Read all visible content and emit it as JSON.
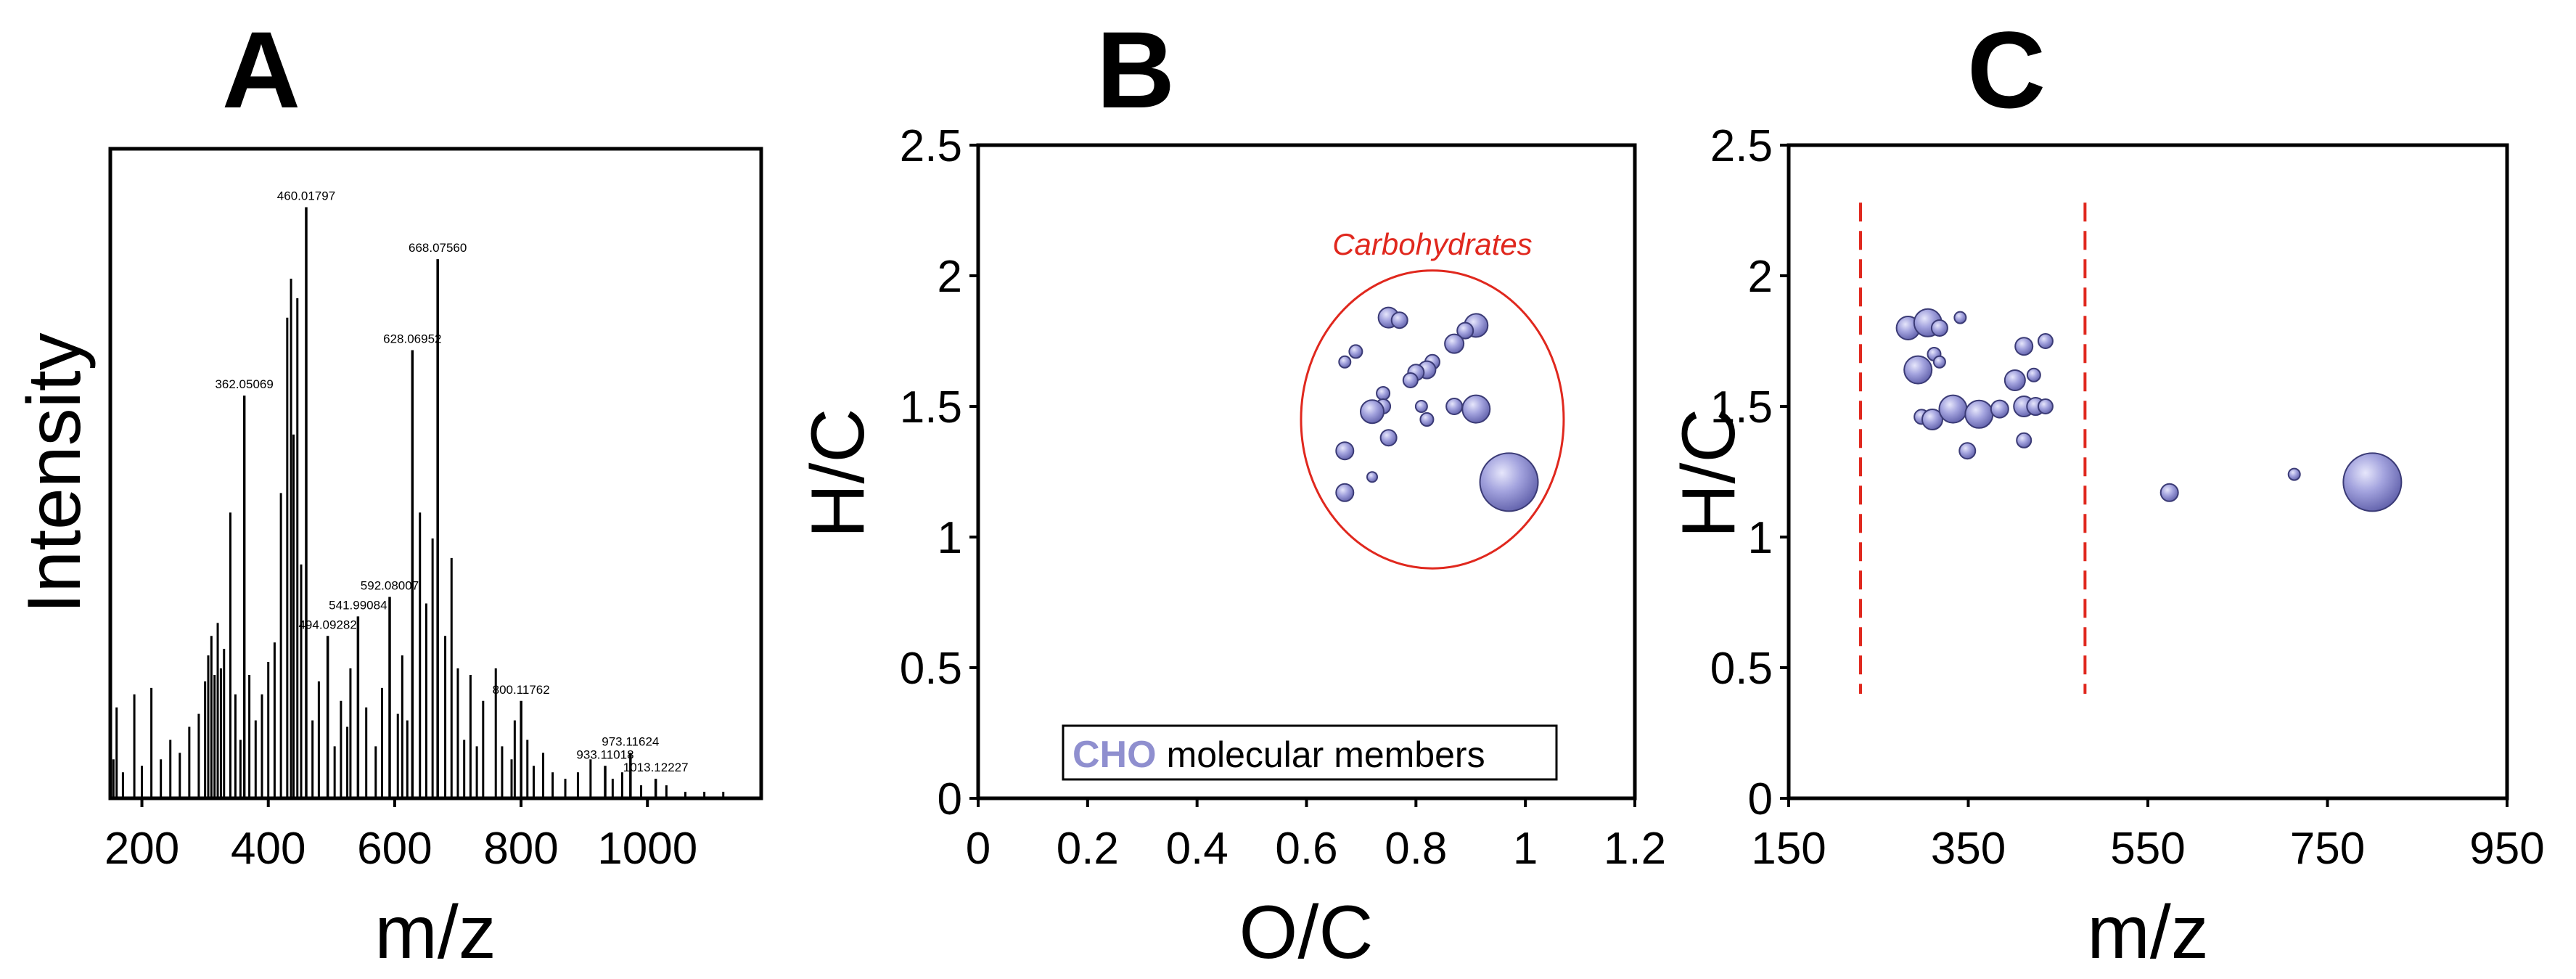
{
  "colors": {
    "bubble_fill": "#9a9ad8",
    "bubble_stroke": "#3b3b76",
    "accent_red": "#e0281e",
    "legend_key": "#8f8fcf"
  },
  "chart_data": [
    {
      "panel": "A",
      "type": "bar",
      "subtype": "mass-spectrum",
      "xlabel": "m/z",
      "ylabel": "Intensity",
      "xlim": [
        150,
        1180
      ],
      "ylim": [
        0,
        100
      ],
      "xticks": [
        "200",
        "400",
        "600",
        "800",
        "1000"
      ],
      "xtick_values": [
        200,
        400,
        600,
        800,
        1000
      ],
      "labeled_peaks": [
        {
          "mz": 460.01797,
          "label": "460.01797",
          "intensity": 91
        },
        {
          "mz": 668.0756,
          "label": "668.07560",
          "intensity": 83
        },
        {
          "mz": 628.06952,
          "label": "628.06952",
          "intensity": 69
        },
        {
          "mz": 362.05069,
          "label": "362.05069",
          "intensity": 62
        },
        {
          "mz": 592.08007,
          "label": "592.08007",
          "intensity": 31
        },
        {
          "mz": 541.99084,
          "label": "541.99084",
          "intensity": 28
        },
        {
          "mz": 494.09282,
          "label": "494.09282",
          "intensity": 25
        },
        {
          "mz": 800.11762,
          "label": "800.11762",
          "intensity": 15
        },
        {
          "mz": 973.11624,
          "label": "973.11624",
          "intensity": 7
        },
        {
          "mz": 933.11018,
          "label": "933.11018",
          "intensity": 5
        },
        {
          "mz": 1013.12227,
          "label": "1013.12227",
          "intensity": 3
        }
      ],
      "other_peaks": [
        {
          "mz": 155,
          "intensity": 6
        },
        {
          "mz": 160,
          "intensity": 14
        },
        {
          "mz": 170,
          "intensity": 4
        },
        {
          "mz": 188,
          "intensity": 16
        },
        {
          "mz": 200,
          "intensity": 5
        },
        {
          "mz": 215,
          "intensity": 17
        },
        {
          "mz": 230,
          "intensity": 6
        },
        {
          "mz": 245,
          "intensity": 9
        },
        {
          "mz": 260,
          "intensity": 7
        },
        {
          "mz": 275,
          "intensity": 11
        },
        {
          "mz": 290,
          "intensity": 13
        },
        {
          "mz": 300,
          "intensity": 18
        },
        {
          "mz": 305,
          "intensity": 22
        },
        {
          "mz": 310,
          "intensity": 25
        },
        {
          "mz": 315,
          "intensity": 19
        },
        {
          "mz": 320,
          "intensity": 27
        },
        {
          "mz": 325,
          "intensity": 20
        },
        {
          "mz": 330,
          "intensity": 23
        },
        {
          "mz": 340,
          "intensity": 44
        },
        {
          "mz": 348,
          "intensity": 16
        },
        {
          "mz": 356,
          "intensity": 9
        },
        {
          "mz": 370,
          "intensity": 19
        },
        {
          "mz": 380,
          "intensity": 12
        },
        {
          "mz": 390,
          "intensity": 16
        },
        {
          "mz": 400,
          "intensity": 21
        },
        {
          "mz": 410,
          "intensity": 24
        },
        {
          "mz": 420,
          "intensity": 47
        },
        {
          "mz": 430,
          "intensity": 74
        },
        {
          "mz": 436,
          "intensity": 80
        },
        {
          "mz": 440,
          "intensity": 56
        },
        {
          "mz": 446,
          "intensity": 77
        },
        {
          "mz": 452,
          "intensity": 36
        },
        {
          "mz": 470,
          "intensity": 12
        },
        {
          "mz": 480,
          "intensity": 18
        },
        {
          "mz": 505,
          "intensity": 8
        },
        {
          "mz": 515,
          "intensity": 15
        },
        {
          "mz": 525,
          "intensity": 11
        },
        {
          "mz": 530,
          "intensity": 20
        },
        {
          "mz": 555,
          "intensity": 14
        },
        {
          "mz": 570,
          "intensity": 8
        },
        {
          "mz": 580,
          "intensity": 17
        },
        {
          "mz": 605,
          "intensity": 13
        },
        {
          "mz": 612,
          "intensity": 22
        },
        {
          "mz": 620,
          "intensity": 12
        },
        {
          "mz": 640,
          "intensity": 44
        },
        {
          "mz": 650,
          "intensity": 30
        },
        {
          "mz": 660,
          "intensity": 40
        },
        {
          "mz": 680,
          "intensity": 25
        },
        {
          "mz": 690,
          "intensity": 37
        },
        {
          "mz": 700,
          "intensity": 20
        },
        {
          "mz": 710,
          "intensity": 9
        },
        {
          "mz": 720,
          "intensity": 19
        },
        {
          "mz": 730,
          "intensity": 8
        },
        {
          "mz": 740,
          "intensity": 15
        },
        {
          "mz": 760,
          "intensity": 20
        },
        {
          "mz": 770,
          "intensity": 8
        },
        {
          "mz": 785,
          "intensity": 6
        },
        {
          "mz": 790,
          "intensity": 12
        },
        {
          "mz": 810,
          "intensity": 9
        },
        {
          "mz": 820,
          "intensity": 5
        },
        {
          "mz": 835,
          "intensity": 7
        },
        {
          "mz": 850,
          "intensity": 4
        },
        {
          "mz": 870,
          "intensity": 3
        },
        {
          "mz": 890,
          "intensity": 4
        },
        {
          "mz": 910,
          "intensity": 6
        },
        {
          "mz": 945,
          "intensity": 3
        },
        {
          "mz": 960,
          "intensity": 4
        },
        {
          "mz": 990,
          "intensity": 2
        },
        {
          "mz": 1030,
          "intensity": 2
        },
        {
          "mz": 1060,
          "intensity": 1
        },
        {
          "mz": 1090,
          "intensity": 1
        },
        {
          "mz": 1120,
          "intensity": 1
        }
      ]
    },
    {
      "panel": "B",
      "type": "scatter",
      "subtype": "bubble (van Krevelen)",
      "xlabel": "O/C",
      "ylabel": "H/C",
      "xlim": [
        0,
        1.2
      ],
      "ylim": [
        0,
        2.5
      ],
      "xticks": [
        "0",
        "0.2",
        "0.4",
        "0.6",
        "0.8",
        "1",
        "1.2"
      ],
      "xtick_values": [
        0,
        0.2,
        0.4,
        0.6,
        0.8,
        1,
        1.2
      ],
      "yticks": [
        "0",
        "0.5",
        "1",
        "1.5",
        "2",
        "2.5"
      ],
      "ytick_values": [
        0,
        0.5,
        1,
        1.5,
        2,
        2.5
      ],
      "region": {
        "label": "Carbohydrates",
        "center": [
          0.83,
          1.45
        ],
        "radius_x": 0.24,
        "radius_y": 0.57
      },
      "legend": {
        "key": "CHO",
        "text": "molecular members"
      },
      "points": [
        {
          "x": 0.75,
          "y": 1.84,
          "s": 1.4
        },
        {
          "x": 0.77,
          "y": 1.83,
          "s": 1.1
        },
        {
          "x": 0.91,
          "y": 1.81,
          "s": 1.6
        },
        {
          "x": 0.89,
          "y": 1.79,
          "s": 1.1
        },
        {
          "x": 0.87,
          "y": 1.74,
          "s": 1.3
        },
        {
          "x": 0.69,
          "y": 1.71,
          "s": 0.9
        },
        {
          "x": 0.67,
          "y": 1.67,
          "s": 0.8
        },
        {
          "x": 0.83,
          "y": 1.67,
          "s": 1.0
        },
        {
          "x": 0.82,
          "y": 1.64,
          "s": 1.2
        },
        {
          "x": 0.8,
          "y": 1.63,
          "s": 1.1
        },
        {
          "x": 0.79,
          "y": 1.6,
          "s": 1.0
        },
        {
          "x": 0.74,
          "y": 1.55,
          "s": 0.9
        },
        {
          "x": 0.74,
          "y": 1.5,
          "s": 1.0
        },
        {
          "x": 0.72,
          "y": 1.48,
          "s": 1.6
        },
        {
          "x": 0.81,
          "y": 1.5,
          "s": 0.8
        },
        {
          "x": 0.87,
          "y": 1.5,
          "s": 1.1
        },
        {
          "x": 0.91,
          "y": 1.49,
          "s": 1.9
        },
        {
          "x": 0.82,
          "y": 1.45,
          "s": 0.9
        },
        {
          "x": 0.75,
          "y": 1.38,
          "s": 1.1
        },
        {
          "x": 0.67,
          "y": 1.33,
          "s": 1.2
        },
        {
          "x": 0.72,
          "y": 1.23,
          "s": 0.7
        },
        {
          "x": 0.67,
          "y": 1.17,
          "s": 1.2
        },
        {
          "x": 0.97,
          "y": 1.21,
          "s": 4.0
        }
      ]
    },
    {
      "panel": "C",
      "type": "scatter",
      "subtype": "bubble",
      "xlabel": "m/z",
      "ylabel": "H/C",
      "xlim": [
        150,
        950
      ],
      "ylim": [
        0,
        2.5
      ],
      "xticks": [
        "150",
        "350",
        "550",
        "750",
        "950"
      ],
      "xtick_values": [
        150,
        350,
        550,
        750,
        950
      ],
      "yticks": [
        "0",
        "0.5",
        "1",
        "1.5",
        "2",
        "2.5"
      ],
      "ytick_values": [
        0,
        0.5,
        1,
        1.5,
        2,
        2.5
      ],
      "region_bounds_x": [
        230,
        480
      ],
      "region_bounds_y": [
        0.4,
        2.28
      ],
      "points": [
        {
          "x": 283,
          "y": 1.8,
          "s": 1.6
        },
        {
          "x": 305,
          "y": 1.82,
          "s": 1.9
        },
        {
          "x": 318,
          "y": 1.8,
          "s": 1.1
        },
        {
          "x": 341,
          "y": 1.84,
          "s": 0.8
        },
        {
          "x": 412,
          "y": 1.73,
          "s": 1.2
        },
        {
          "x": 436,
          "y": 1.75,
          "s": 1.0
        },
        {
          "x": 312,
          "y": 1.7,
          "s": 0.9
        },
        {
          "x": 318,
          "y": 1.67,
          "s": 0.8
        },
        {
          "x": 294,
          "y": 1.64,
          "s": 1.9
        },
        {
          "x": 402,
          "y": 1.6,
          "s": 1.4
        },
        {
          "x": 423,
          "y": 1.62,
          "s": 0.9
        },
        {
          "x": 298,
          "y": 1.46,
          "s": 1.0
        },
        {
          "x": 310,
          "y": 1.45,
          "s": 1.4
        },
        {
          "x": 333,
          "y": 1.49,
          "s": 1.9
        },
        {
          "x": 362,
          "y": 1.47,
          "s": 1.9
        },
        {
          "x": 385,
          "y": 1.49,
          "s": 1.2
        },
        {
          "x": 412,
          "y": 1.5,
          "s": 1.4
        },
        {
          "x": 425,
          "y": 1.5,
          "s": 1.2
        },
        {
          "x": 436,
          "y": 1.5,
          "s": 1.0
        },
        {
          "x": 349,
          "y": 1.33,
          "s": 1.1
        },
        {
          "x": 412,
          "y": 1.37,
          "s": 1.0
        },
        {
          "x": 574,
          "y": 1.17,
          "s": 1.2
        },
        {
          "x": 713,
          "y": 1.24,
          "s": 0.8
        },
        {
          "x": 800,
          "y": 1.21,
          "s": 4.0
        }
      ]
    }
  ]
}
